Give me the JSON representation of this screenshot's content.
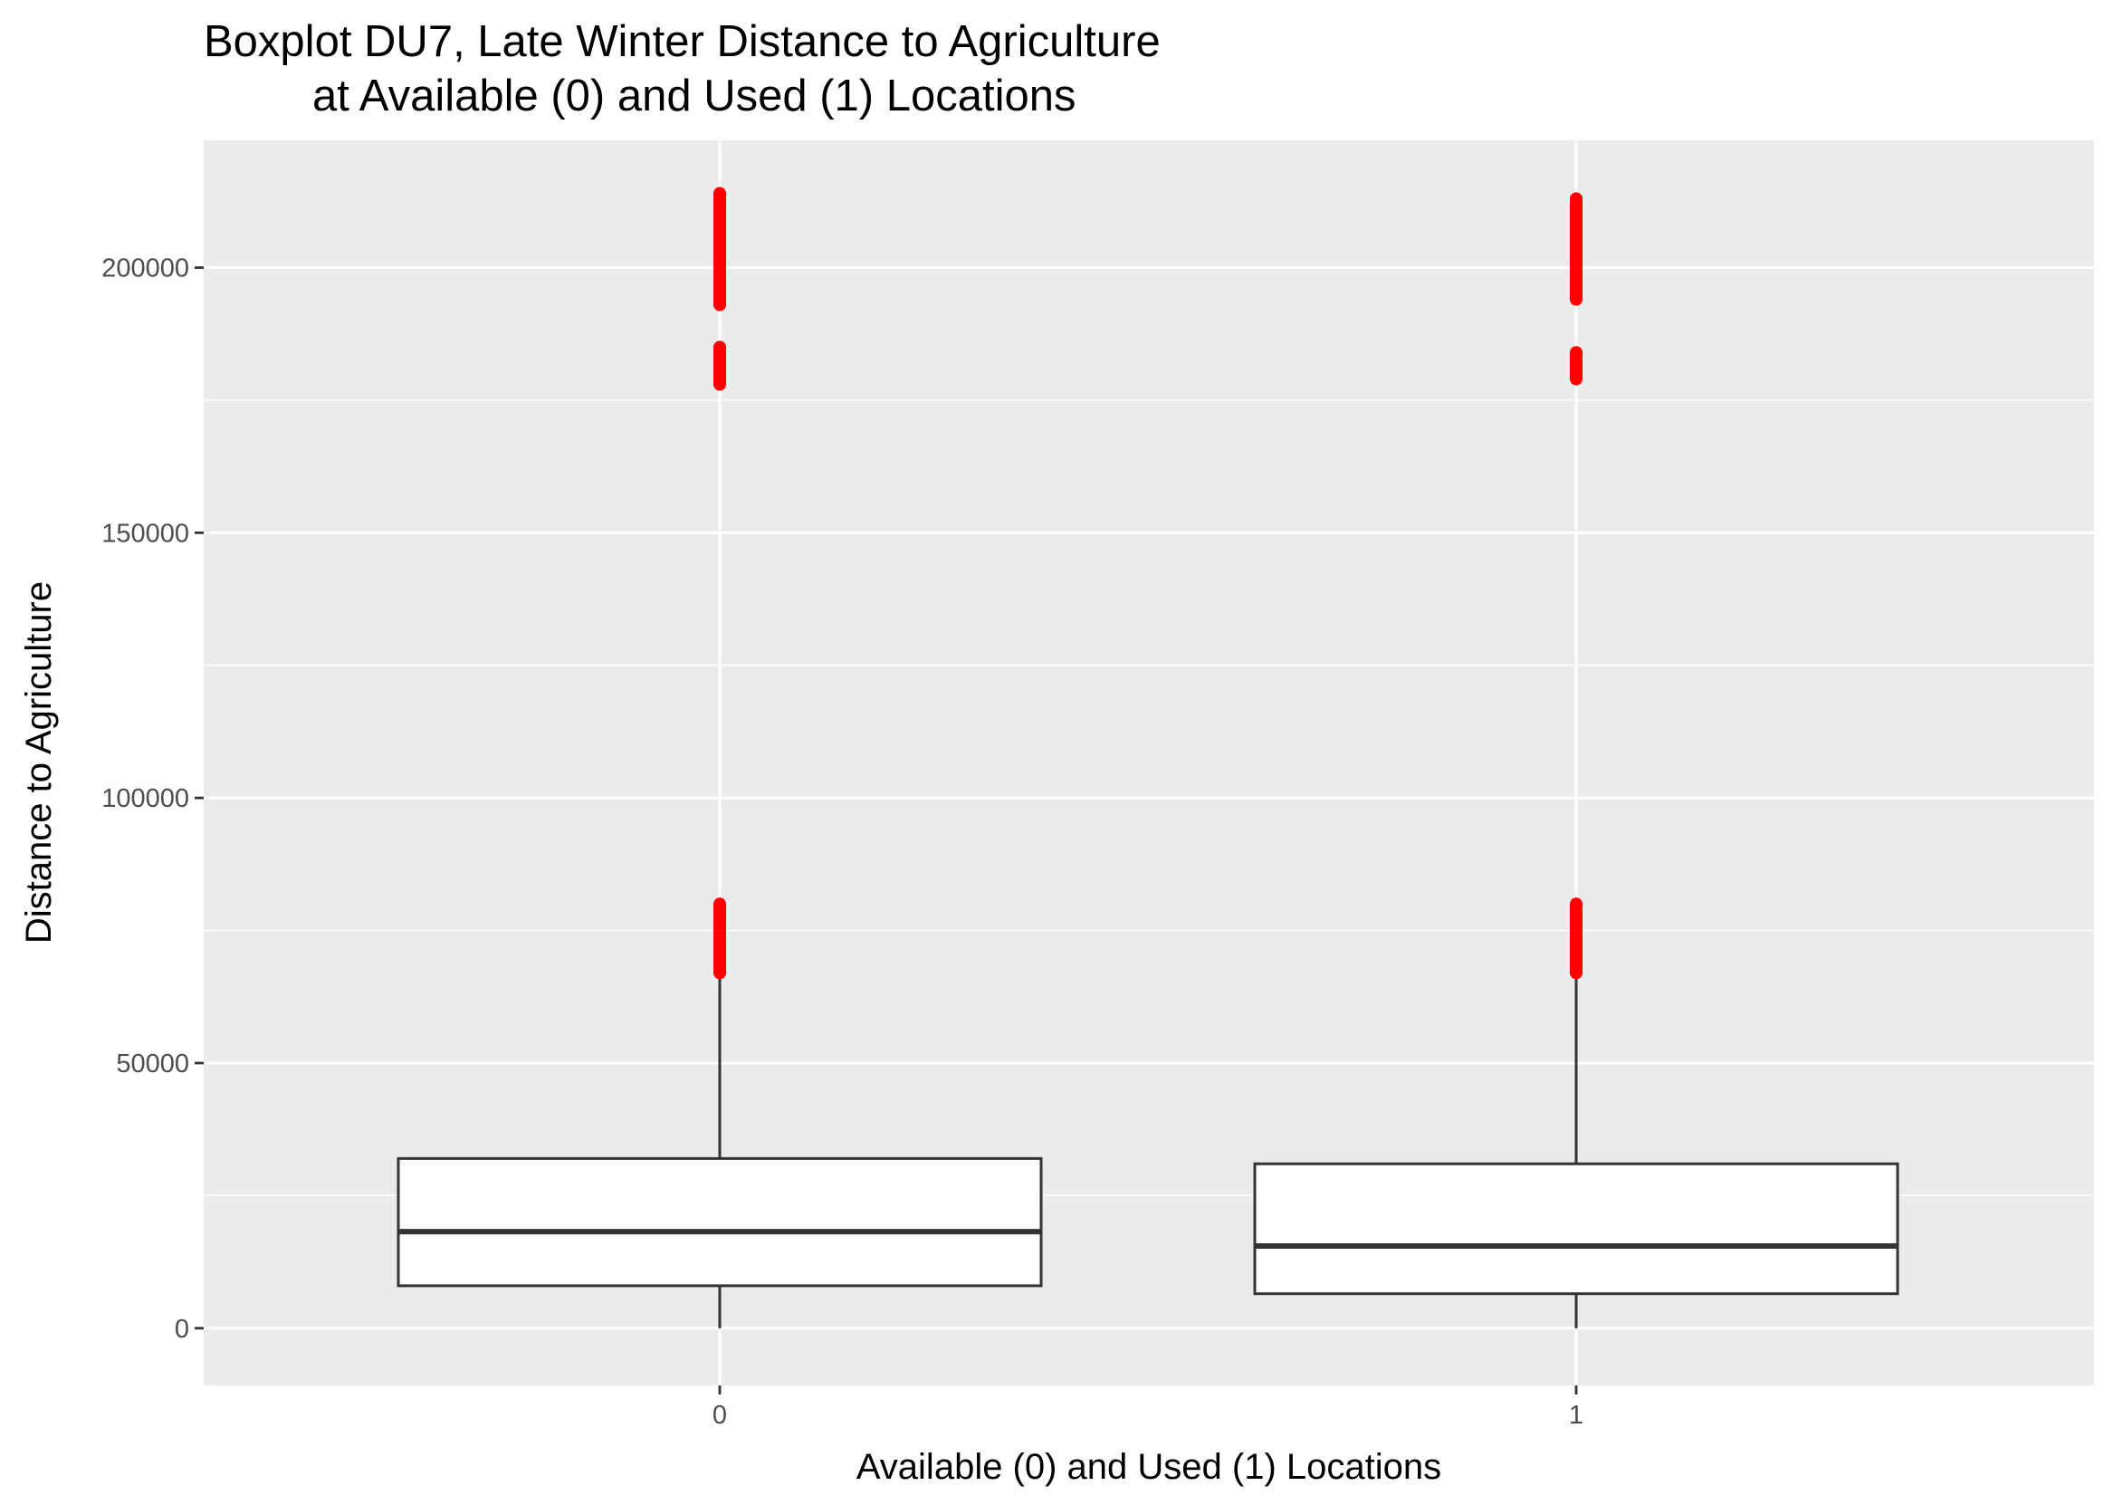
{
  "chart_data": {
    "type": "boxplot",
    "title": "Boxplot DU7, Late Winter Distance to Agriculture",
    "subtitle": "at Available (0) and Used (1) Locations",
    "xlabel": "Available (0) and Used (1) Locations",
    "ylabel": "Distance to Agriculture",
    "categories": [
      "0",
      "1"
    ],
    "yticks": [
      0,
      50000,
      100000,
      150000,
      200000
    ],
    "ytick_labels": [
      "0",
      "50000",
      "100000",
      "150000",
      "200000"
    ],
    "ylim": [
      -10800,
      224000
    ],
    "grid": true,
    "boxes": [
      {
        "category": "0",
        "whisker_low": 0,
        "q1": 8000,
        "median": 18200,
        "q3": 32000,
        "whisker_high": 67000,
        "outlier_ranges": [
          [
            67000,
            80000
          ],
          [
            178000,
            185000
          ],
          [
            193000,
            214000
          ]
        ]
      },
      {
        "category": "1",
        "whisker_low": 0,
        "q1": 6500,
        "median": 15500,
        "q3": 31000,
        "whisker_high": 67000,
        "outlier_ranges": [
          [
            67000,
            80000
          ],
          [
            179000,
            184000
          ],
          [
            194000,
            213000
          ]
        ]
      }
    ],
    "colors": {
      "panel": "#ebebeb",
      "grid": "#ffffff",
      "box_fill": "#ffffff",
      "box_line": "#333333",
      "outlier": "#ff0000"
    }
  }
}
